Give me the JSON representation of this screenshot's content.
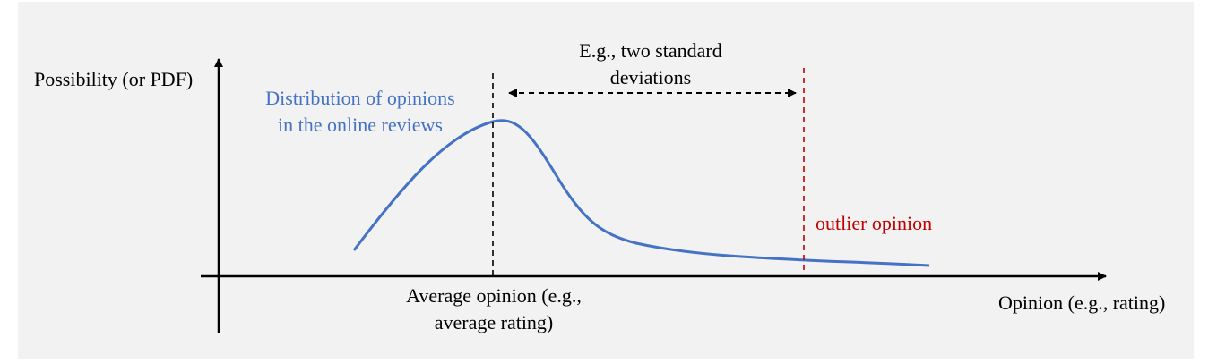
{
  "diagram": {
    "y_axis_label": "Possibility (or PDF)",
    "x_axis_label": "Opinion (e.g., rating)",
    "distribution_label": [
      "Distribution of opinions",
      "in the online reviews"
    ],
    "average_label": [
      "Average opinion (e.g.,",
      "average rating)"
    ],
    "spread_label": [
      "E.g., two standard",
      "deviations"
    ],
    "outlier_label": "outlier opinion",
    "colors": {
      "background": "#f2f2f2",
      "curve": "#4472c4",
      "outlier": "#c00000",
      "axis": "#000000"
    }
  }
}
